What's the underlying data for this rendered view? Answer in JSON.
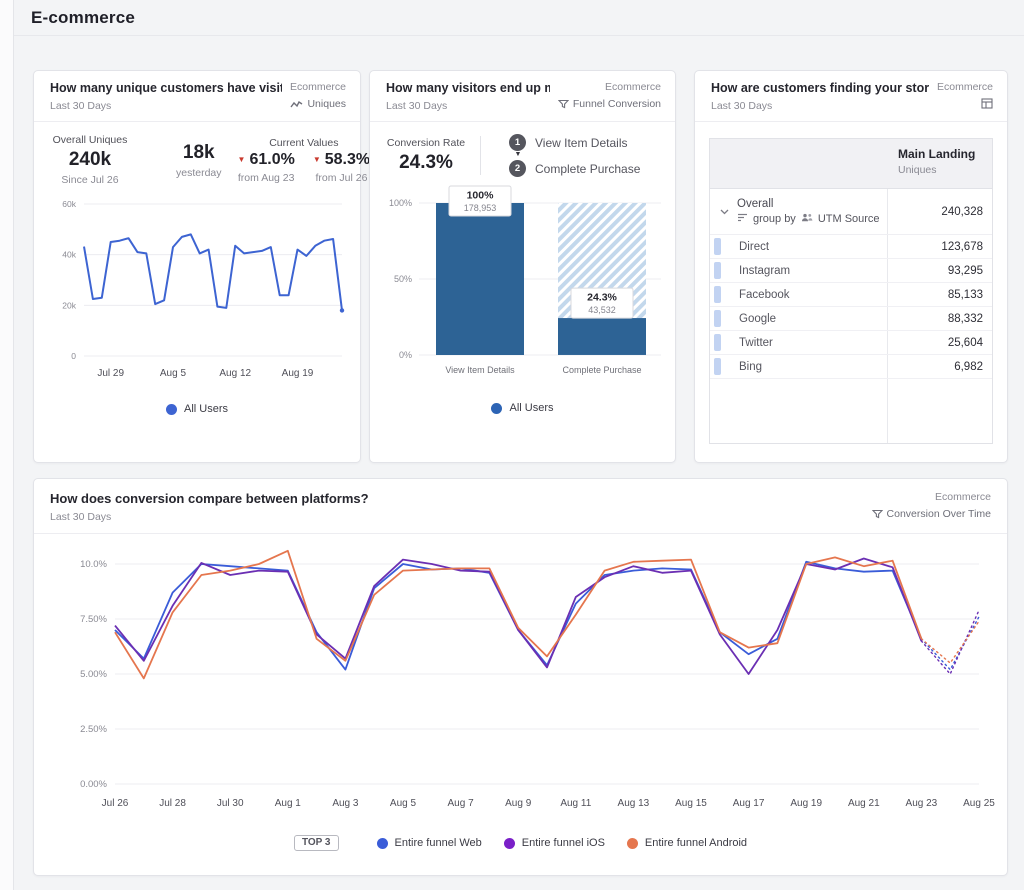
{
  "page": {
    "title": "E-commerce"
  },
  "cards": {
    "uniques": {
      "title": "How many unique customers have visited ...",
      "scope": "Ecommerce",
      "range": "Last 30 Days",
      "chart_type": "Uniques",
      "overall_label": "Overall Uniques",
      "overall_value": "240k",
      "overall_sub": "Since Jul 26",
      "latest_value": "18k",
      "latest_sub": "yesterday",
      "current_values_label": "Current Values",
      "deltas": [
        {
          "value": "61.0%",
          "sub": "from Aug 23",
          "direction": "down"
        },
        {
          "value": "58.3%",
          "sub": "from Jul 26",
          "direction": "down"
        }
      ],
      "legend": [
        {
          "label": "All Users",
          "color": "#3d64d2"
        }
      ]
    },
    "funnel": {
      "title": "How many visitors end up making a purcha...",
      "scope": "Ecommerce",
      "range": "Last 30 Days",
      "chart_type": "Funnel Conversion",
      "conversion_label": "Conversion Rate",
      "conversion_value": "24.3%",
      "steps": [
        {
          "num": "1",
          "label": "View Item Details"
        },
        {
          "num": "2",
          "label": "Complete Purchase"
        }
      ],
      "legend": [
        {
          "label": "All Users",
          "color": "#2d64b5"
        }
      ]
    },
    "utm": {
      "title": "How are customers finding your store?",
      "scope": "Ecommerce",
      "range": "Last 30 Days",
      "column": {
        "title": "Main Landing",
        "sub": "Uniques"
      },
      "overall_row": {
        "label": "Overall",
        "group_by_label": "group by",
        "group_by_value": "UTM Source",
        "value": "240,328"
      },
      "rows": [
        {
          "label": "Direct",
          "value": "123,678"
        },
        {
          "label": "Instagram",
          "value": "93,295"
        },
        {
          "label": "Facebook",
          "value": "85,133"
        },
        {
          "label": "Google",
          "value": "88,332"
        },
        {
          "label": "Twitter",
          "value": "25,604"
        },
        {
          "label": "Bing",
          "value": "6,982"
        }
      ]
    },
    "platforms": {
      "title": "How does conversion compare between platforms?",
      "scope": "Ecommerce",
      "range": "Last 30 Days",
      "chart_type": "Conversion Over Time",
      "legend_badge": "TOP 3",
      "legend": [
        {
          "label": "Entire funnel Web",
          "color": "#3a5cd8"
        },
        {
          "label": "Entire funnel iOS",
          "color": "#7a1fc8"
        },
        {
          "label": "Entire funnel Android",
          "color": "#e5764e"
        }
      ]
    }
  },
  "chart_data": [
    {
      "id": "uniques_over_time",
      "type": "line",
      "title": "How many unique customers have visited ...",
      "ylabel": "Uniques",
      "ylim": [
        0,
        60000
      ],
      "grid": true,
      "legend_position": "bottom",
      "yticks": [
        {
          "v": 0,
          "label": "0"
        },
        {
          "v": 20000,
          "label": "20k"
        },
        {
          "v": 40000,
          "label": "40k"
        },
        {
          "v": 60000,
          "label": "60k"
        }
      ],
      "x": [
        "Jul 26",
        "Jul 27",
        "Jul 28",
        "Jul 29",
        "Jul 30",
        "Jul 31",
        "Aug 1",
        "Aug 2",
        "Aug 3",
        "Aug 4",
        "Aug 5",
        "Aug 6",
        "Aug 7",
        "Aug 8",
        "Aug 9",
        "Aug 10",
        "Aug 11",
        "Aug 12",
        "Aug 13",
        "Aug 14",
        "Aug 15",
        "Aug 16",
        "Aug 17",
        "Aug 18",
        "Aug 19",
        "Aug 20",
        "Aug 21",
        "Aug 22",
        "Aug 23",
        "Aug 24"
      ],
      "xticks": [
        {
          "i": 3,
          "label": "Jul 29"
        },
        {
          "i": 10,
          "label": "Aug 5"
        },
        {
          "i": 17,
          "label": "Aug 12"
        },
        {
          "i": 24,
          "label": "Aug 19"
        }
      ],
      "series": [
        {
          "name": "All Users",
          "color": "#3d64d2",
          "values": [
            43200,
            22500,
            23000,
            45000,
            45500,
            46500,
            41000,
            40500,
            20500,
            22000,
            43000,
            47000,
            48000,
            40500,
            42000,
            19500,
            19000,
            43500,
            40500,
            41000,
            41500,
            43000,
            24000,
            24000,
            42000,
            39500,
            43500,
            45500,
            46200,
            18000
          ]
        }
      ],
      "last_point_dot": true
    },
    {
      "id": "purchase_funnel",
      "type": "bar",
      "title": "How many visitors end up making a purcha...",
      "categories": [
        "View Item Details",
        "Complete Purchase"
      ],
      "values": [
        100,
        24.3
      ],
      "counts": [
        178953,
        43532
      ],
      "value_labels": [
        "100%",
        "24.3%"
      ],
      "count_labels": [
        "178,953",
        "43,532"
      ],
      "ylim": [
        0,
        100
      ],
      "yticks": [
        {
          "v": 0,
          "label": "0%"
        },
        {
          "v": 50,
          "label": "50%"
        },
        {
          "v": 100,
          "label": "100%"
        }
      ],
      "series_name": "All Users",
      "bar_color": "#2d6395",
      "lost_hatch_color": "#c3d8ec"
    },
    {
      "id": "conversion_over_time",
      "type": "line",
      "title": "How does conversion compare between platforms?",
      "ylabel": "Conversion Rate",
      "ylim": [
        0,
        10
      ],
      "grid": true,
      "legend_position": "bottom",
      "dashed_from_index": 28,
      "yticks": [
        {
          "v": 0,
          "label": "0.00%"
        },
        {
          "v": 2.5,
          "label": "2.50%"
        },
        {
          "v": 5,
          "label": "5.00%"
        },
        {
          "v": 7.5,
          "label": "7.50%"
        },
        {
          "v": 10,
          "label": "10.0%"
        }
      ],
      "x": [
        "Jul 26",
        "Jul 27",
        "Jul 28",
        "Jul 29",
        "Jul 30",
        "Jul 31",
        "Aug 1",
        "Aug 2",
        "Aug 3",
        "Aug 4",
        "Aug 5",
        "Aug 6",
        "Aug 7",
        "Aug 8",
        "Aug 9",
        "Aug 10",
        "Aug 11",
        "Aug 12",
        "Aug 13",
        "Aug 14",
        "Aug 15",
        "Aug 16",
        "Aug 17",
        "Aug 18",
        "Aug 19",
        "Aug 20",
        "Aug 21",
        "Aug 22",
        "Aug 23",
        "Aug 24",
        "Aug 25"
      ],
      "xticks": [
        {
          "i": 0,
          "label": "Jul 26"
        },
        {
          "i": 2,
          "label": "Jul 28"
        },
        {
          "i": 4,
          "label": "Jul 30"
        },
        {
          "i": 6,
          "label": "Aug 1"
        },
        {
          "i": 8,
          "label": "Aug 3"
        },
        {
          "i": 10,
          "label": "Aug 5"
        },
        {
          "i": 12,
          "label": "Aug 7"
        },
        {
          "i": 14,
          "label": "Aug 9"
        },
        {
          "i": 16,
          "label": "Aug 11"
        },
        {
          "i": 18,
          "label": "Aug 13"
        },
        {
          "i": 20,
          "label": "Aug 15"
        },
        {
          "i": 22,
          "label": "Aug 17"
        },
        {
          "i": 24,
          "label": "Aug 19"
        },
        {
          "i": 26,
          "label": "Aug 21"
        },
        {
          "i": 28,
          "label": "Aug 23"
        },
        {
          "i": 30,
          "label": "Aug 25"
        }
      ],
      "series": [
        {
          "name": "Entire funnel Web",
          "color": "#3a5cd8",
          "values": [
            7.0,
            5.7,
            8.7,
            10.0,
            9.9,
            9.8,
            9.7,
            6.9,
            5.2,
            8.9,
            10.0,
            9.75,
            9.8,
            9.6,
            7.0,
            5.4,
            8.2,
            9.5,
            9.7,
            9.8,
            9.75,
            6.9,
            5.9,
            6.6,
            10.1,
            9.8,
            9.65,
            9.7,
            6.6,
            5.2,
            7.6
          ]
        },
        {
          "name": "Entire funnel iOS",
          "color": "#6b2fb3",
          "values": [
            7.2,
            5.6,
            8.1,
            10.05,
            9.5,
            9.7,
            9.65,
            6.8,
            5.7,
            9.0,
            10.2,
            10.0,
            9.7,
            9.65,
            7.0,
            5.3,
            8.5,
            9.4,
            9.9,
            9.6,
            9.7,
            6.8,
            5.0,
            7.0,
            10.0,
            9.75,
            10.25,
            9.85,
            6.5,
            5.0,
            7.9
          ]
        },
        {
          "name": "Entire funnel Android",
          "color": "#e5764e",
          "values": [
            6.9,
            4.8,
            7.8,
            9.5,
            9.7,
            10.0,
            10.6,
            6.6,
            5.6,
            8.6,
            9.7,
            9.75,
            9.8,
            9.8,
            7.1,
            5.8,
            7.7,
            9.7,
            10.1,
            10.15,
            10.2,
            6.9,
            6.2,
            6.4,
            10.0,
            10.3,
            9.9,
            10.15,
            6.6,
            5.5,
            7.4
          ]
        }
      ]
    }
  ]
}
